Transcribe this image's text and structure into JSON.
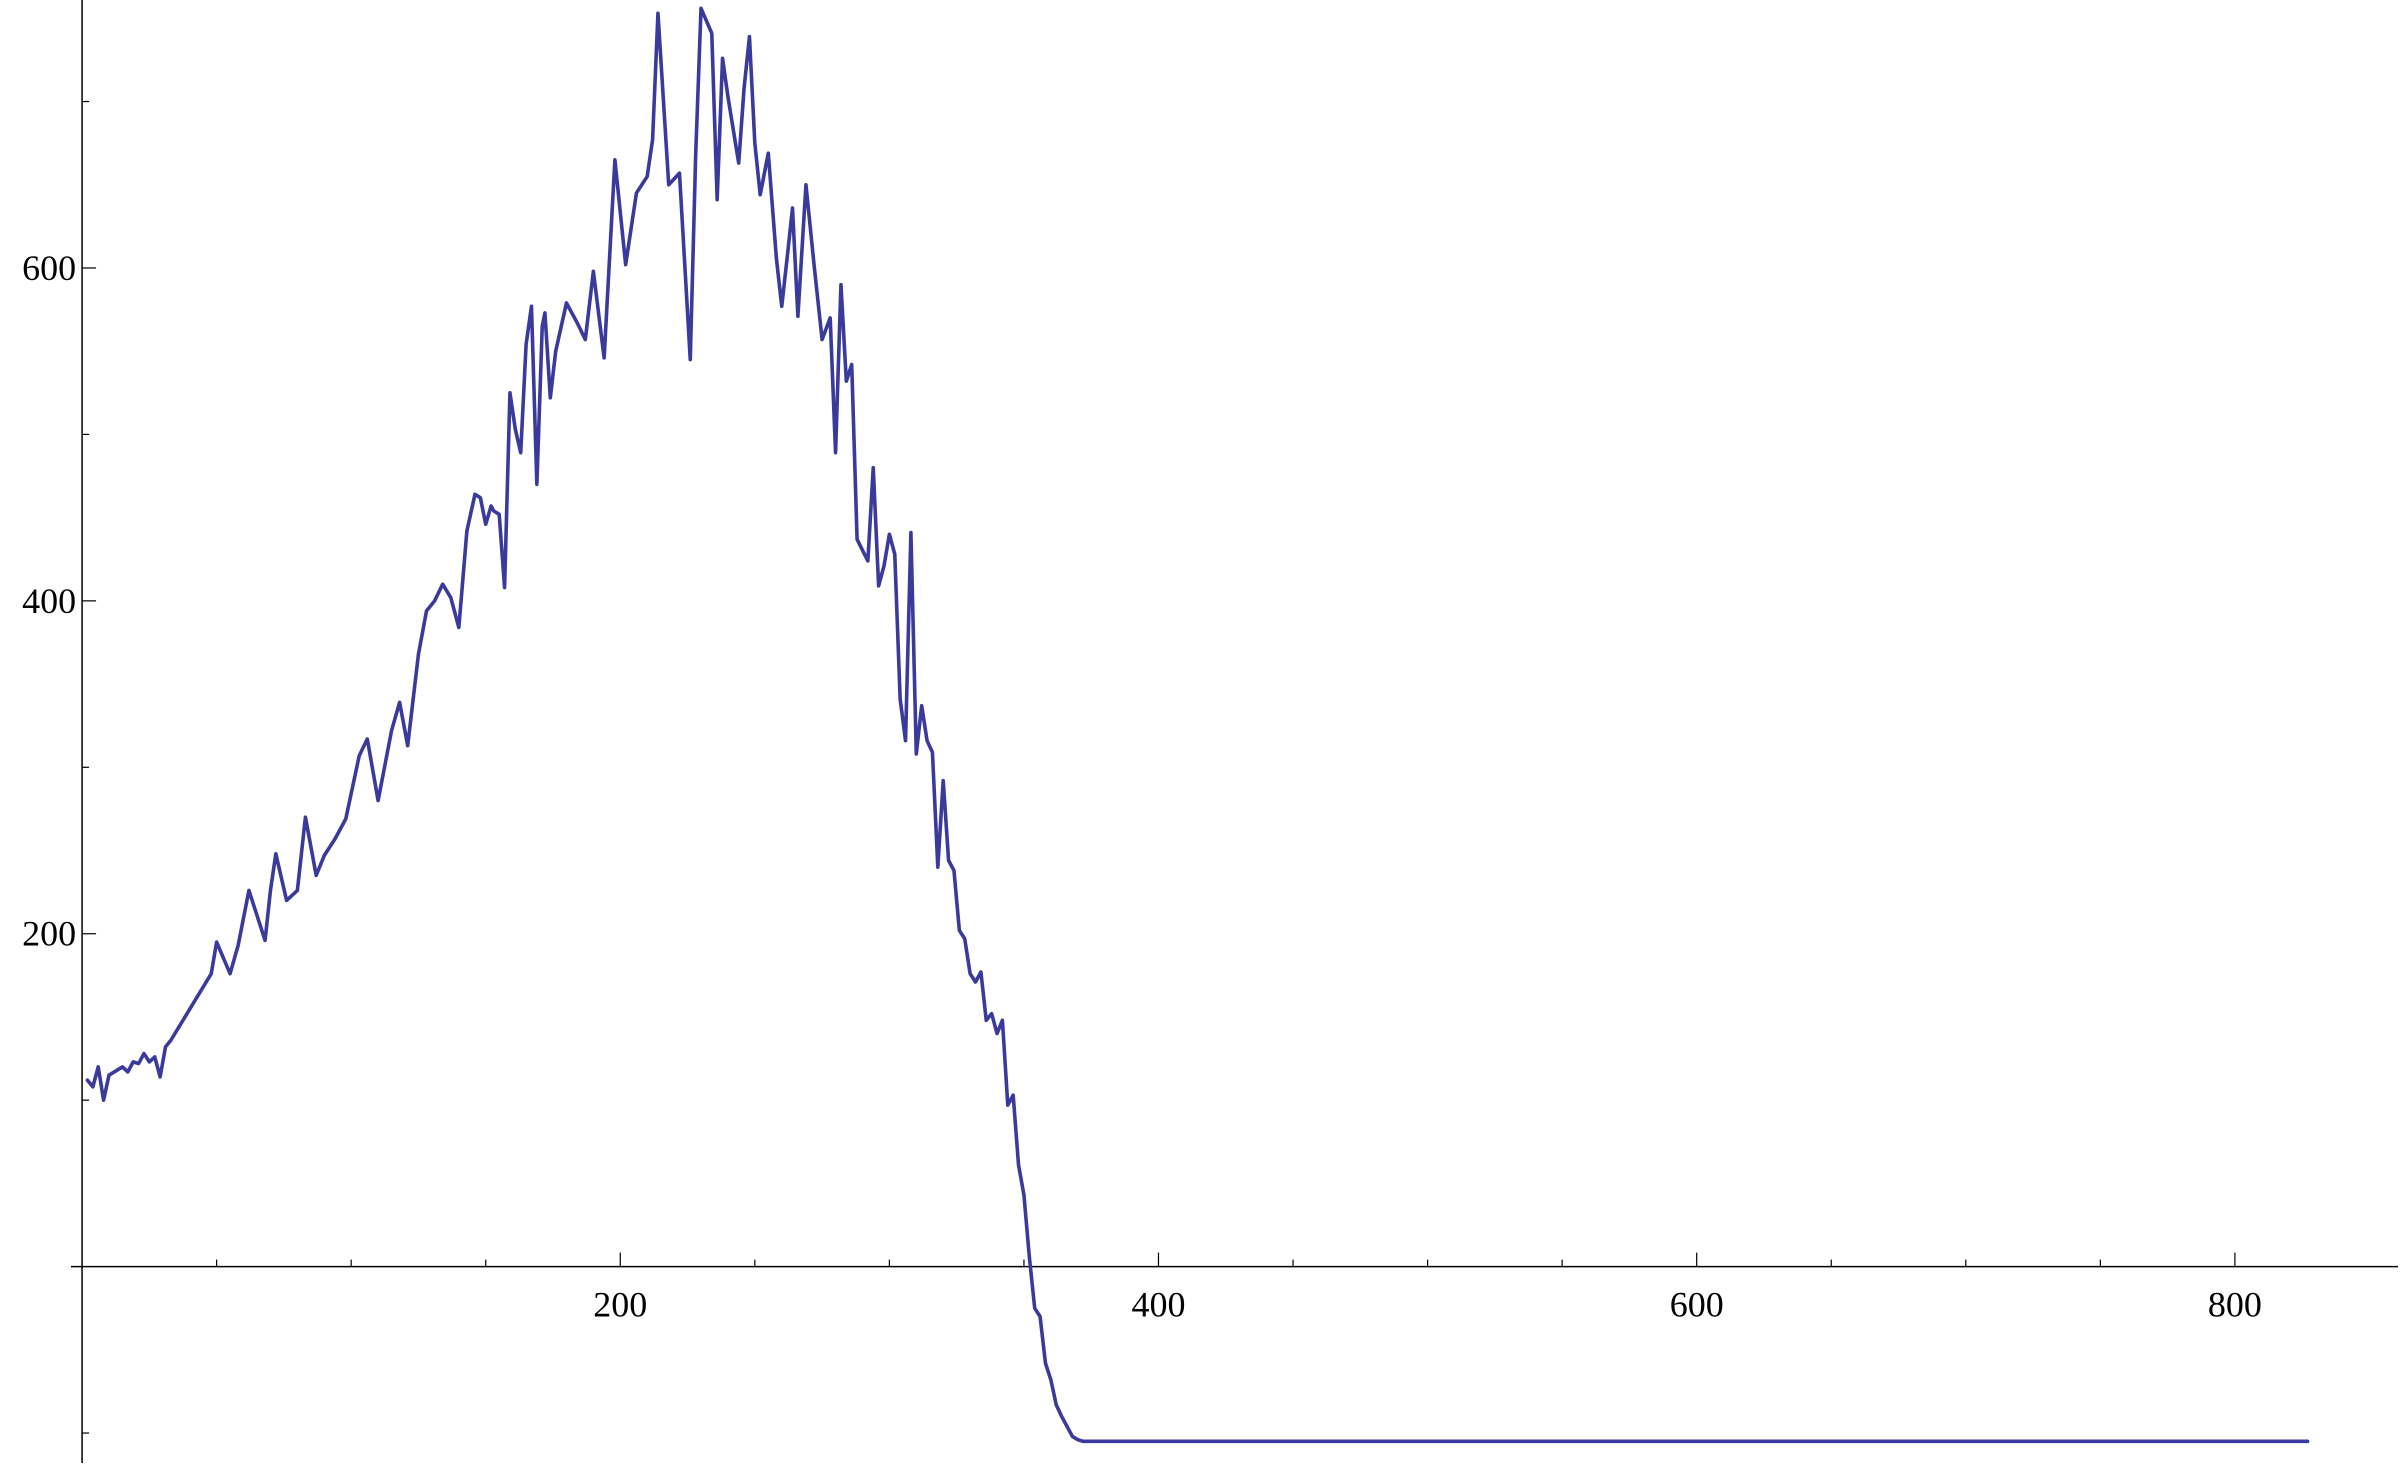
{
  "chart_data": {
    "type": "line",
    "title": "",
    "xlabel": "",
    "ylabel": "",
    "xlim": [
      -3,
      845
    ],
    "ylim": [
      -118,
      755
    ],
    "grid": false,
    "x_ticks": [
      200,
      400,
      600,
      800
    ],
    "x_tick_labels": [
      "200",
      "400",
      "600",
      "800"
    ],
    "x_minor_step": 50,
    "y_ticks": [
      200,
      400,
      600
    ],
    "y_tick_labels": [
      "200",
      "400",
      "600"
    ],
    "y_minor_step": 100,
    "colors": {
      "series": "#3a3a9c",
      "axes": "#000000",
      "background": "#ffffff"
    },
    "series": [
      {
        "color": "#3a3a9c",
        "x": [
          2,
          4,
          6,
          8,
          10,
          13,
          15,
          17,
          19,
          21,
          23,
          25,
          27,
          29,
          31,
          33,
          36,
          48,
          50,
          55,
          58,
          62,
          68,
          70,
          72,
          76,
          80,
          83,
          87,
          90,
          94,
          98,
          103,
          106,
          110,
          115,
          118,
          121,
          125,
          128,
          131,
          134,
          137,
          140,
          143,
          146,
          148,
          150,
          152,
          153,
          155,
          157,
          159,
          161,
          163,
          165,
          167,
          169,
          171,
          172,
          174,
          176,
          180,
          184,
          187,
          190,
          194,
          198,
          202,
          206,
          210,
          212,
          214,
          218,
          222,
          226,
          228,
          230,
          234,
          236,
          238,
          240,
          244,
          246,
          248,
          250,
          252,
          255,
          258,
          260,
          262,
          264,
          266,
          269,
          272,
          275,
          278,
          280,
          282,
          284,
          286,
          288,
          292,
          294,
          296,
          298,
          300,
          302,
          304,
          306,
          308,
          310,
          312,
          314,
          316,
          318,
          320,
          322,
          324,
          326,
          328,
          330,
          332,
          334,
          336,
          338,
          340,
          342,
          344,
          346,
          348,
          350,
          352,
          354,
          356,
          358,
          360,
          362,
          364,
          366,
          368,
          370,
          372,
          374,
          376,
          378,
          380,
          382,
          384,
          386,
          388,
          390,
          392,
          394,
          396,
          398,
          400,
          405,
          410,
          418,
          425,
          432,
          438,
          444,
          450,
          458,
          464,
          470,
          476,
          482,
          488,
          492,
          496,
          500,
          505,
          510,
          520,
          600,
          700,
          800,
          827
        ],
        "y": [
          112,
          108,
          120,
          100,
          115,
          118,
          120,
          117,
          123,
          122,
          128,
          123,
          126,
          114,
          132,
          136,
          144,
          176,
          195,
          176,
          193,
          226,
          196,
          226,
          248,
          220,
          226,
          270,
          235,
          247,
          257,
          269,
          307,
          317,
          280,
          322,
          339,
          313,
          368,
          394,
          400,
          410,
          402,
          384,
          442,
          464,
          462,
          446,
          457,
          454,
          452,
          408,
          525,
          503,
          489,
          554,
          577,
          470,
          565,
          573,
          522,
          550,
          579,
          567,
          557,
          598,
          546,
          665,
          602,
          645,
          655,
          677,
          753,
          650,
          657,
          545,
          667,
          756,
          741,
          641,
          726,
          703,
          663,
          708,
          739,
          675,
          644,
          669,
          606,
          577,
          606,
          636,
          571,
          650,
          602,
          557,
          570,
          489,
          590,
          532,
          542,
          437,
          424,
          480,
          409,
          421,
          440,
          428,
          341,
          316,
          441,
          308,
          337,
          316,
          309,
          240,
          292,
          244,
          238,
          202,
          197,
          176,
          171,
          177,
          148,
          152,
          140,
          148,
          97,
          103,
          61,
          43,
          6,
          -25,
          -30,
          -58,
          -68,
          -83,
          -90,
          -96,
          -102,
          -104,
          -105,
          -105,
          -105,
          -105,
          -105,
          -105,
          -105,
          -105,
          -105,
          -105,
          -105,
          -105,
          -105,
          -105,
          -105,
          -105,
          -105,
          -105,
          -105,
          -105,
          -105,
          -105,
          -105,
          -105,
          -105,
          -105,
          -105,
          -105,
          -105,
          -105,
          -105,
          -105,
          -105,
          -105,
          -105,
          -105,
          -105,
          -105,
          -105
        ]
      }
    ]
  }
}
